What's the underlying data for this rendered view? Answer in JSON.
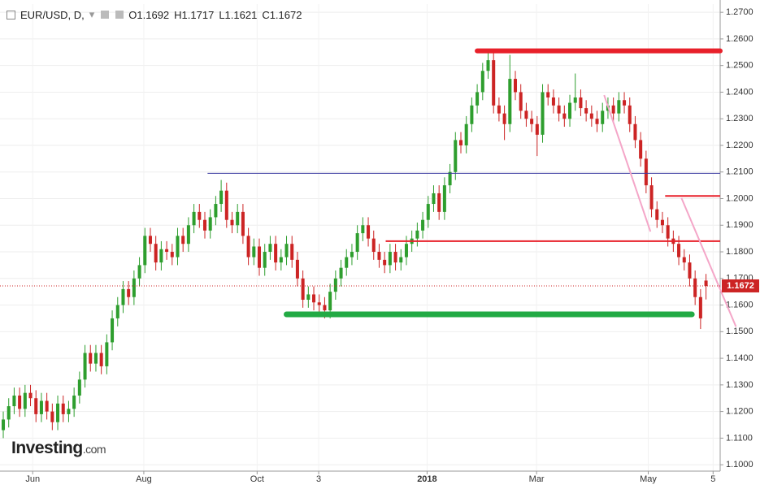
{
  "header": {
    "symbol": "EUR/USD, D,",
    "ohlc_letters": [
      "O",
      "H",
      "L",
      "C"
    ]
  },
  "logo": {
    "main": "Investing",
    "suffix": ".com"
  },
  "chart_data": {
    "type": "candlestick",
    "up_color": "#2e9e2e",
    "down_color": "#cc2424",
    "open": [
      1.113,
      1.117,
      1.122,
      1.126,
      1.121,
      1.127,
      1.125,
      1.119,
      1.124,
      1.12,
      1.116,
      1.123,
      1.119,
      1.121,
      1.126,
      1.132,
      1.142,
      1.138,
      1.142,
      1.137,
      1.146,
      1.155,
      1.16,
      1.166,
      1.163,
      1.17,
      1.175,
      1.186,
      1.183,
      1.176,
      1.181,
      1.18,
      1.178,
      1.186,
      1.183,
      1.19,
      1.195,
      1.192,
      1.188,
      1.193,
      1.198,
      1.203,
      1.192,
      1.19,
      1.195,
      1.186,
      1.178,
      1.182,
      1.174,
      1.18,
      1.183,
      1.176,
      1.178,
      1.183,
      1.177,
      1.17,
      1.162,
      1.164,
      1.161,
      1.16,
      1.158,
      1.165,
      1.17,
      1.174,
      1.178,
      1.18,
      1.187,
      1.19,
      1.185,
      1.18,
      1.177,
      1.175,
      1.18,
      1.176,
      1.178,
      1.183,
      1.185,
      1.188,
      1.192,
      1.198,
      1.202,
      1.195,
      1.205,
      1.21,
      1.222,
      1.22,
      1.228,
      1.235,
      1.24,
      1.248,
      1.252,
      1.235,
      1.232,
      1.228,
      1.245,
      1.24,
      1.233,
      1.23,
      1.228,
      1.224,
      1.24,
      1.238,
      1.235,
      1.232,
      1.23,
      1.236,
      1.238,
      1.234,
      1.232,
      1.23,
      1.228,
      1.233,
      1.235,
      1.232,
      1.237,
      1.235,
      1.228,
      1.222,
      1.215,
      1.205,
      1.196,
      1.192,
      1.19,
      1.185,
      1.183,
      1.178,
      1.176,
      1.17,
      1.163,
      1.1692
    ],
    "high": [
      1.12,
      1.125,
      1.129,
      1.129,
      1.13,
      1.13,
      1.128,
      1.127,
      1.127,
      1.123,
      1.126,
      1.126,
      1.124,
      1.129,
      1.135,
      1.145,
      1.145,
      1.145,
      1.145,
      1.149,
      1.158,
      1.163,
      1.169,
      1.169,
      1.173,
      1.178,
      1.189,
      1.189,
      1.186,
      1.184,
      1.184,
      1.183,
      1.189,
      1.189,
      1.193,
      1.198,
      1.198,
      1.195,
      1.196,
      1.201,
      1.207,
      1.206,
      1.195,
      1.198,
      1.198,
      1.189,
      1.185,
      1.185,
      1.183,
      1.186,
      1.186,
      1.181,
      1.186,
      1.186,
      1.18,
      1.173,
      1.167,
      1.167,
      1.164,
      1.163,
      1.168,
      1.173,
      1.177,
      1.181,
      1.183,
      1.19,
      1.193,
      1.193,
      1.188,
      1.183,
      1.18,
      1.183,
      1.183,
      1.181,
      1.186,
      1.188,
      1.191,
      1.195,
      1.201,
      1.205,
      1.205,
      1.208,
      1.213,
      1.225,
      1.225,
      1.231,
      1.238,
      1.243,
      1.251,
      1.255,
      1.255,
      1.238,
      1.235,
      1.254,
      1.248,
      1.243,
      1.236,
      1.233,
      1.231,
      1.243,
      1.243,
      1.241,
      1.238,
      1.235,
      1.239,
      1.247,
      1.241,
      1.237,
      1.235,
      1.233,
      1.236,
      1.238,
      1.238,
      1.24,
      1.24,
      1.238,
      1.231,
      1.225,
      1.218,
      1.208,
      1.199,
      1.195,
      1.193,
      1.188,
      1.186,
      1.181,
      1.179,
      1.173,
      1.166,
      1.1717
    ],
    "low": [
      1.11,
      1.114,
      1.119,
      1.118,
      1.118,
      1.122,
      1.116,
      1.116,
      1.117,
      1.113,
      1.113,
      1.116,
      1.116,
      1.118,
      1.123,
      1.129,
      1.135,
      1.135,
      1.134,
      1.134,
      1.143,
      1.152,
      1.157,
      1.16,
      1.16,
      1.167,
      1.172,
      1.18,
      1.173,
      1.173,
      1.177,
      1.175,
      1.175,
      1.18,
      1.18,
      1.187,
      1.189,
      1.185,
      1.185,
      1.19,
      1.195,
      1.189,
      1.187,
      1.187,
      1.183,
      1.175,
      1.175,
      1.171,
      1.171,
      1.177,
      1.173,
      1.173,
      1.175,
      1.174,
      1.167,
      1.159,
      1.159,
      1.158,
      1.157,
      1.155,
      1.155,
      1.162,
      1.167,
      1.171,
      1.175,
      1.177,
      1.184,
      1.182,
      1.177,
      1.174,
      1.172,
      1.172,
      1.173,
      1.173,
      1.175,
      1.18,
      1.182,
      1.185,
      1.189,
      1.195,
      1.192,
      1.192,
      1.202,
      1.207,
      1.217,
      1.217,
      1.225,
      1.232,
      1.237,
      1.245,
      1.232,
      1.229,
      1.222,
      1.225,
      1.237,
      1.23,
      1.227,
      1.225,
      1.216,
      1.221,
      1.235,
      1.232,
      1.229,
      1.227,
      1.227,
      1.233,
      1.231,
      1.229,
      1.227,
      1.225,
      1.225,
      1.23,
      1.229,
      1.229,
      1.232,
      1.225,
      1.219,
      1.212,
      1.202,
      1.193,
      1.189,
      1.187,
      1.182,
      1.18,
      1.175,
      1.173,
      1.167,
      1.16,
      1.151,
      1.1621
    ],
    "close": [
      1.117,
      1.122,
      1.126,
      1.121,
      1.127,
      1.125,
      1.119,
      1.124,
      1.12,
      1.116,
      1.123,
      1.119,
      1.121,
      1.126,
      1.132,
      1.142,
      1.138,
      1.142,
      1.137,
      1.146,
      1.155,
      1.16,
      1.166,
      1.163,
      1.17,
      1.175,
      1.186,
      1.183,
      1.176,
      1.181,
      1.18,
      1.178,
      1.186,
      1.183,
      1.19,
      1.195,
      1.192,
      1.188,
      1.193,
      1.198,
      1.203,
      1.192,
      1.19,
      1.195,
      1.186,
      1.178,
      1.182,
      1.174,
      1.18,
      1.183,
      1.176,
      1.178,
      1.183,
      1.177,
      1.17,
      1.162,
      1.164,
      1.161,
      1.16,
      1.158,
      1.165,
      1.17,
      1.174,
      1.178,
      1.18,
      1.187,
      1.19,
      1.185,
      1.18,
      1.177,
      1.175,
      1.18,
      1.176,
      1.178,
      1.183,
      1.185,
      1.188,
      1.192,
      1.198,
      1.202,
      1.195,
      1.205,
      1.21,
      1.222,
      1.22,
      1.228,
      1.235,
      1.24,
      1.248,
      1.252,
      1.235,
      1.232,
      1.228,
      1.245,
      1.24,
      1.233,
      1.23,
      1.228,
      1.224,
      1.24,
      1.238,
      1.235,
      1.232,
      1.23,
      1.236,
      1.238,
      1.234,
      1.232,
      1.23,
      1.228,
      1.233,
      1.235,
      1.232,
      1.237,
      1.235,
      1.228,
      1.222,
      1.215,
      1.205,
      1.196,
      1.192,
      1.19,
      1.185,
      1.183,
      1.178,
      1.176,
      1.17,
      1.163,
      1.155,
      1.1672
    ],
    "xlim": [
      -0.6,
      131.6
    ],
    "ylim": [
      1.0976,
      1.2731
    ],
    "xticks": [
      {
        "value": 5.4,
        "label": "Jun"
      },
      {
        "value": 25.8,
        "label": "Aug"
      },
      {
        "value": 46.6,
        "label": "Oct"
      },
      {
        "value": 57.9,
        "label": "3"
      },
      {
        "value": 77.8,
        "label": "2018"
      },
      {
        "value": 97.9,
        "label": "Mar"
      },
      {
        "value": 118.4,
        "label": "May"
      },
      {
        "value": 130.3,
        "label": "5"
      }
    ],
    "yticks": [
      {
        "value": 1.1,
        "label": "1.1000"
      },
      {
        "value": 1.11,
        "label": "1.1100"
      },
      {
        "value": 1.12,
        "label": "1.1200"
      },
      {
        "value": 1.13,
        "label": "1.1300"
      },
      {
        "value": 1.14,
        "label": "1.1400"
      },
      {
        "value": 1.15,
        "label": "1.1500"
      },
      {
        "value": 1.16,
        "label": "1.1600"
      },
      {
        "value": 1.17,
        "label": "1.1700"
      },
      {
        "value": 1.18,
        "label": "1.1800"
      },
      {
        "value": 1.19,
        "label": "1.1900"
      },
      {
        "value": 1.2,
        "label": "1.2000"
      },
      {
        "value": 1.21,
        "label": "1.2100"
      },
      {
        "value": 1.22,
        "label": "1.2200"
      },
      {
        "value": 1.23,
        "label": "1.2300"
      },
      {
        "value": 1.24,
        "label": "1.2400"
      },
      {
        "value": 1.25,
        "label": "1.2500"
      },
      {
        "value": 1.26,
        "label": "1.2600"
      },
      {
        "value": 1.27,
        "label": "1.2700"
      }
    ],
    "grid": true,
    "levels": [
      {
        "price": 1.2555,
        "from": 87,
        "to": 131.6,
        "color": "#e8202a",
        "width": 6
      },
      {
        "price": 1.2095,
        "from": 37.5,
        "to": 131.6,
        "color": "#3a3aa0",
        "width": 1
      },
      {
        "price": 1.184,
        "from": 70.2,
        "to": 131.6,
        "color": "#e8202a",
        "width": 2
      },
      {
        "price": 1.201,
        "from": 121.5,
        "to": 131.6,
        "color": "#e8202a",
        "width": 2
      },
      {
        "price": 1.1565,
        "from": 52,
        "to": 126.4,
        "color": "#22aa44",
        "width": 7
      }
    ],
    "trendlines": [
      {
        "x": [
          110.3,
          118.8
        ],
        "y": [
          1.2389,
          1.1876
        ],
        "color": "#f4a6c8"
      },
      {
        "x": [
          124.5,
          134.5
        ],
        "y": [
          1.2002,
          1.1519
        ],
        "color": "#f4a6c8"
      }
    ],
    "price_line_color": "#cc2424"
  }
}
